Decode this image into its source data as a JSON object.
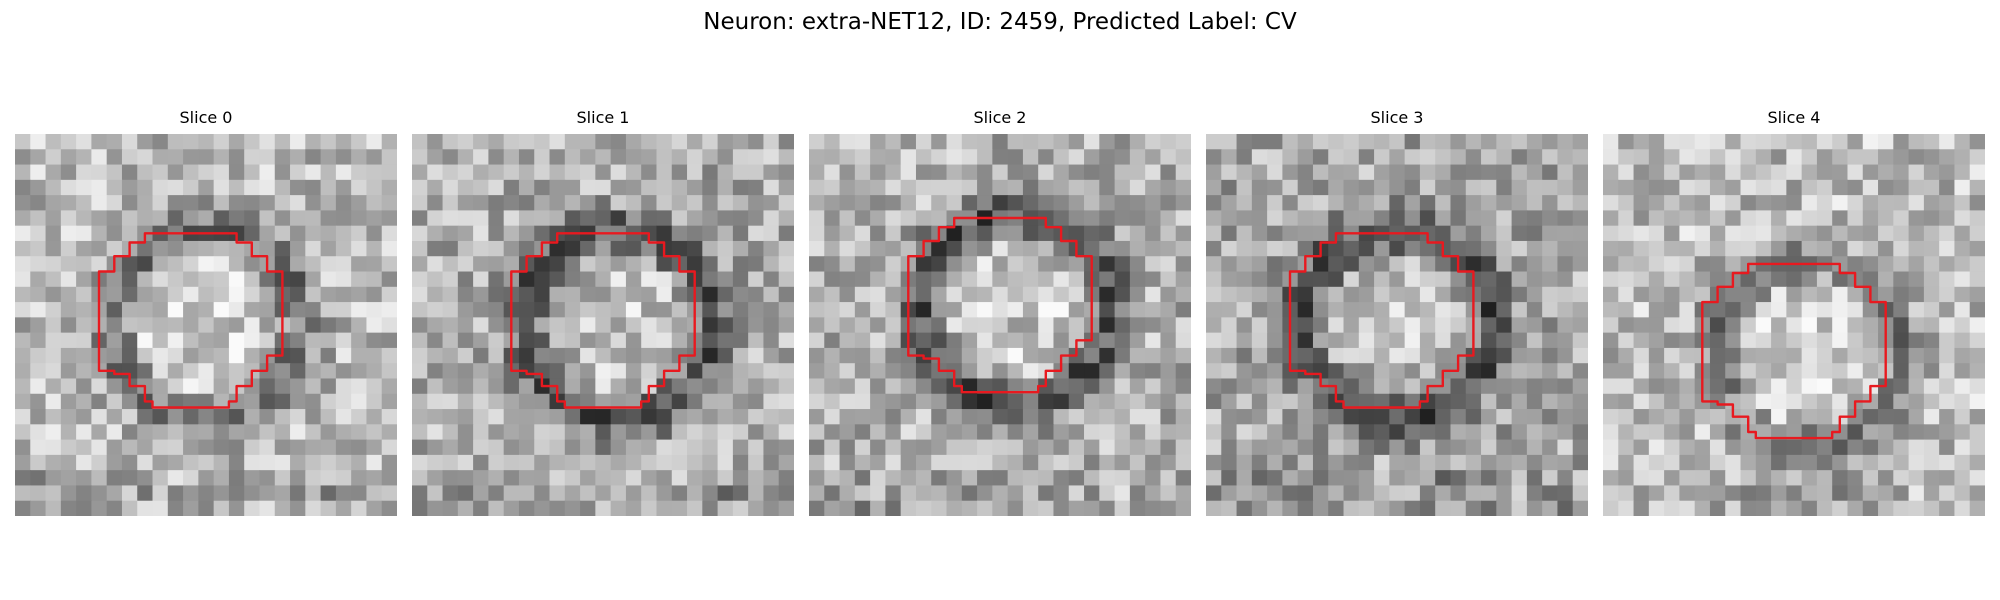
{
  "figure": {
    "title": "Neuron: extra-NET12, ID: 2459, Predicted Label: CV"
  },
  "panels": [
    {
      "title": "Slice 0",
      "center_col": 12,
      "center_row": 12,
      "tone_offset": 0.05,
      "ring": 0.28
    },
    {
      "title": "Slice 1",
      "center_col": 13,
      "center_row": 12,
      "tone_offset": 0.0,
      "ring": 0.33
    },
    {
      "title": "Slice 2",
      "center_col": 13,
      "center_row": 11,
      "tone_offset": 0.02,
      "ring": 0.38
    },
    {
      "title": "Slice 3",
      "center_col": 12,
      "center_row": 12,
      "tone_offset": -0.02,
      "ring": 0.33
    },
    {
      "title": "Slice 4",
      "center_col": 13,
      "center_row": 14,
      "tone_offset": 0.06,
      "ring": 0.24
    }
  ],
  "contour_color": "#e8191f"
}
